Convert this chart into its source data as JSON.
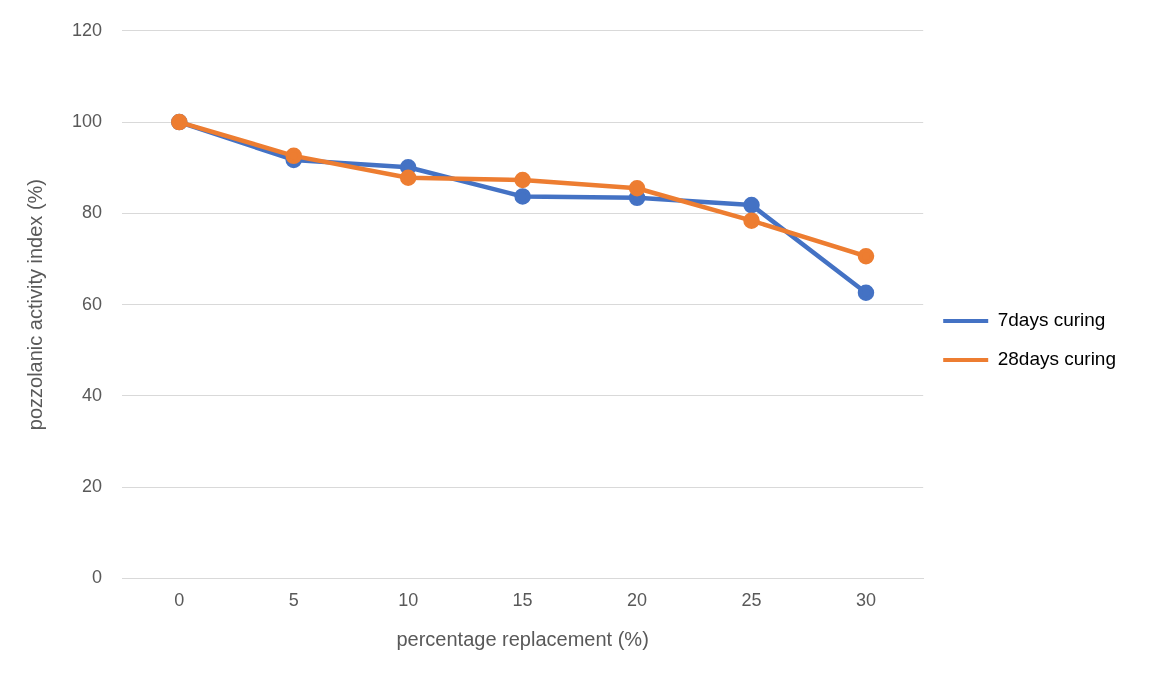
{
  "chart_data": {
    "type": "line",
    "xlabel": "percentage replacement (%)",
    "ylabel": "pozzolanic activity index (%)",
    "categories": [
      "0",
      "5",
      "10",
      "15",
      "20",
      "25",
      "30"
    ],
    "series": [
      {
        "name": "7days curing",
        "color": "#4472c4",
        "values": [
          100,
          91.7,
          90.1,
          83.7,
          83.4,
          81.8,
          62.6
        ]
      },
      {
        "name": "28days curing",
        "color": "#ed7d31",
        "values": [
          100,
          92.6,
          87.8,
          87.3,
          85.5,
          78.4,
          70.6
        ]
      }
    ],
    "ylim": [
      0,
      120
    ],
    "yticks": [
      0,
      20,
      40,
      60,
      80,
      100,
      120
    ],
    "grid": "y",
    "legend": "right",
    "marker": "circle",
    "line_style": "solid"
  }
}
